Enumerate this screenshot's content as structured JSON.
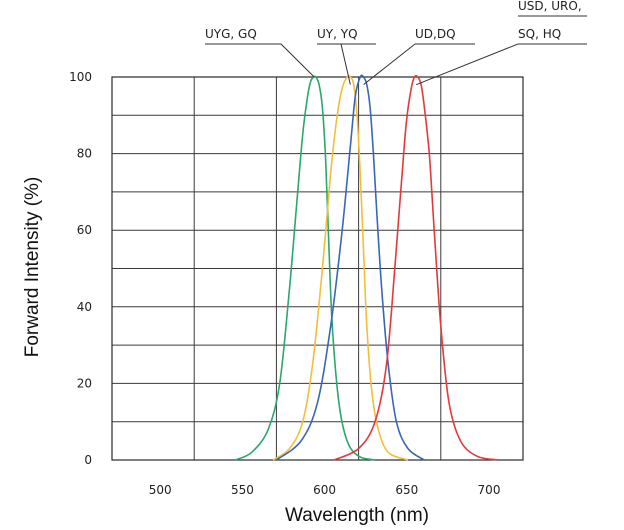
{
  "chart_data": {
    "type": "line",
    "title": "",
    "xlabel": "Wavelength (nm)",
    "ylabel": "Forward Intensity (%)",
    "xlim": [
      450,
      700
    ],
    "ylim": [
      0,
      100
    ],
    "xticks": [
      500,
      550,
      600,
      650,
      700
    ],
    "xtick_labels": [
      "500",
      "550",
      "600",
      "650",
      "700"
    ],
    "yticks": [
      0,
      20,
      40,
      60,
      80,
      100
    ],
    "ytick_labels": [
      "0",
      "20",
      "40",
      "60",
      "80",
      "100"
    ],
    "grid": true,
    "legend": "none",
    "annotations": [
      "UYG, GQ",
      "UY, YQ",
      "UD,DQ",
      "USD, URO,",
      "SQ, HQ"
    ],
    "series": [
      {
        "color": "#2aa86a",
        "x": [
          525,
          535,
          545,
          552,
          558,
          562,
          566,
          569,
          571,
          573,
          574,
          576,
          578,
          580,
          582,
          584,
          588,
          593,
          600,
          610
        ],
        "y": [
          0,
          2,
          8,
          20,
          45,
          65,
          85,
          95,
          99,
          100,
          100,
          98,
          92,
          78,
          55,
          35,
          15,
          5,
          1,
          0
        ]
      },
      {
        "color": "#f2bf3a",
        "x": [
          548,
          558,
          566,
          572,
          578,
          583,
          587,
          590,
          593,
          595,
          597,
          599,
          601,
          603,
          605,
          608,
          612,
          618,
          630
        ],
        "y": [
          0,
          3,
          10,
          25,
          50,
          75,
          90,
          97,
          100,
          100,
          98,
          90,
          75,
          55,
          35,
          18,
          8,
          2,
          0
        ]
      },
      {
        "color": "#3866b8",
        "x": [
          550,
          565,
          575,
          583,
          590,
          595,
          598,
          601,
          603,
          605,
          607,
          609,
          611,
          614,
          618,
          623,
          630,
          640
        ],
        "y": [
          0,
          5,
          15,
          35,
          60,
          82,
          95,
          100,
          100,
          98,
          92,
          80,
          65,
          45,
          25,
          10,
          3,
          0
        ]
      },
      {
        "color": "#e23a3a",
        "x": [
          585,
          600,
          610,
          617,
          622,
          626,
          629,
          632,
          634,
          636,
          638,
          640,
          643,
          646,
          650,
          655,
          662,
          672,
          685
        ],
        "y": [
          0,
          3,
          10,
          25,
          50,
          72,
          88,
          97,
          100,
          100,
          98,
          92,
          80,
          60,
          35,
          15,
          5,
          1,
          0
        ]
      }
    ]
  }
}
